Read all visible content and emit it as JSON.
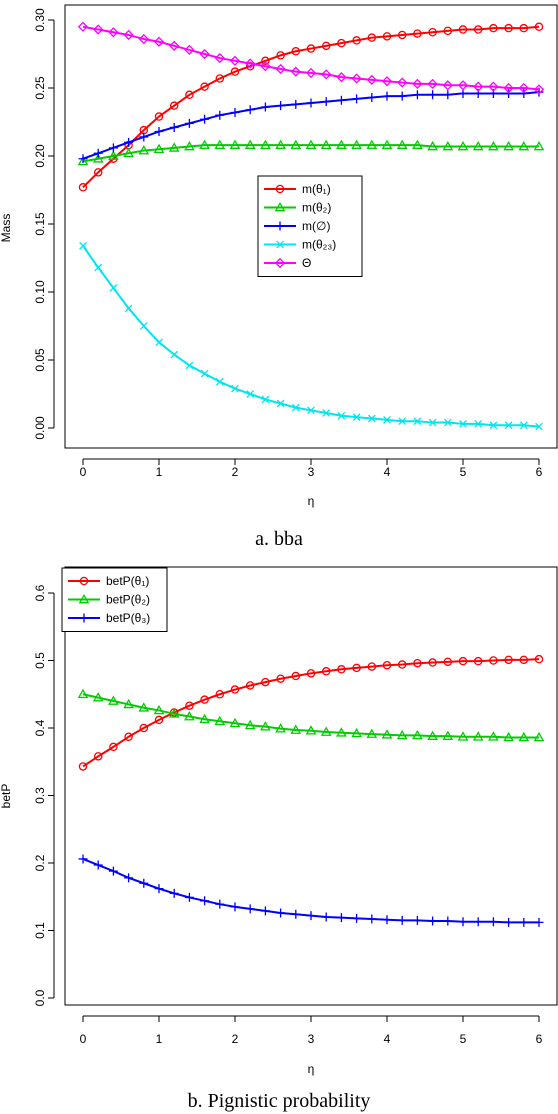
{
  "chart_data": [
    {
      "type": "line",
      "caption": "a. bba",
      "xlabel": "η",
      "ylabel": "Mass",
      "xlim": [
        0,
        6
      ],
      "ylim": [
        0,
        0.3
      ],
      "xticks": [
        "0",
        "1",
        "2",
        "3",
        "4",
        "5",
        "6"
      ],
      "yticks": [
        "0.00",
        "0.05",
        "0.10",
        "0.15",
        "0.20",
        "0.25",
        "0.30"
      ],
      "grid": false,
      "legend_position": "center",
      "x": [
        0,
        0.2,
        0.4,
        0.6,
        0.8,
        1.0,
        1.2,
        1.4,
        1.6,
        1.8,
        2.0,
        2.2,
        2.4,
        2.6,
        2.8,
        3.0,
        3.2,
        3.4,
        3.6,
        3.8,
        4.0,
        4.2,
        4.4,
        4.6,
        4.8,
        5.0,
        5.2,
        5.4,
        5.6,
        5.8,
        6.0
      ],
      "series": [
        {
          "name": "m(θ₁)",
          "color": "#ff0000",
          "marker": "circle",
          "values": [
            0.177,
            0.188,
            0.198,
            0.208,
            0.219,
            0.229,
            0.237,
            0.245,
            0.251,
            0.257,
            0.262,
            0.266,
            0.27,
            0.274,
            0.277,
            0.279,
            0.281,
            0.283,
            0.285,
            0.287,
            0.288,
            0.289,
            0.29,
            0.291,
            0.292,
            0.293,
            0.293,
            0.294,
            0.294,
            0.294,
            0.295
          ]
        },
        {
          "name": "m(θ₂)",
          "color": "#00cc00",
          "marker": "triangle",
          "values": [
            0.196,
            0.198,
            0.2,
            0.202,
            0.204,
            0.205,
            0.206,
            0.207,
            0.208,
            0.208,
            0.208,
            0.208,
            0.208,
            0.208,
            0.208,
            0.208,
            0.208,
            0.208,
            0.208,
            0.208,
            0.208,
            0.208,
            0.208,
            0.207,
            0.207,
            0.207,
            0.207,
            0.207,
            0.207,
            0.207,
            0.207
          ]
        },
        {
          "name": "m(∅)",
          "color": "#0000ff",
          "marker": "plus",
          "values": [
            0.198,
            0.202,
            0.206,
            0.21,
            0.214,
            0.218,
            0.221,
            0.224,
            0.227,
            0.23,
            0.232,
            0.234,
            0.236,
            0.237,
            0.238,
            0.239,
            0.24,
            0.241,
            0.242,
            0.243,
            0.244,
            0.244,
            0.245,
            0.245,
            0.245,
            0.246,
            0.246,
            0.246,
            0.246,
            0.246,
            0.247
          ]
        },
        {
          "name": "m(θ₂₃)",
          "color": "#00e5ee",
          "marker": "cross",
          "values": [
            0.134,
            0.118,
            0.103,
            0.088,
            0.075,
            0.063,
            0.054,
            0.046,
            0.04,
            0.034,
            0.029,
            0.025,
            0.021,
            0.018,
            0.015,
            0.013,
            0.011,
            0.009,
            0.008,
            0.007,
            0.006,
            0.005,
            0.005,
            0.004,
            0.004,
            0.003,
            0.003,
            0.002,
            0.002,
            0.002,
            0.001
          ]
        },
        {
          "name": "Θ",
          "color": "#ff00ff",
          "marker": "diamond",
          "values": [
            0.295,
            0.293,
            0.291,
            0.289,
            0.286,
            0.284,
            0.281,
            0.278,
            0.275,
            0.272,
            0.27,
            0.268,
            0.266,
            0.264,
            0.262,
            0.261,
            0.26,
            0.258,
            0.257,
            0.256,
            0.255,
            0.254,
            0.253,
            0.253,
            0.252,
            0.252,
            0.251,
            0.251,
            0.25,
            0.25,
            0.249
          ]
        }
      ]
    },
    {
      "type": "line",
      "caption": "b. Pignistic probability",
      "xlabel": "η",
      "ylabel": "betP",
      "xlim": [
        0,
        6
      ],
      "ylim": [
        0,
        0.6
      ],
      "xticks": [
        "0",
        "1",
        "2",
        "3",
        "4",
        "5",
        "6"
      ],
      "yticks": [
        "0.0",
        "0.1",
        "0.2",
        "0.3",
        "0.4",
        "0.5",
        "0.6"
      ],
      "grid": false,
      "legend_position": "top-left",
      "x": [
        0,
        0.2,
        0.4,
        0.6,
        0.8,
        1.0,
        1.2,
        1.4,
        1.6,
        1.8,
        2.0,
        2.2,
        2.4,
        2.6,
        2.8,
        3.0,
        3.2,
        3.4,
        3.6,
        3.8,
        4.0,
        4.2,
        4.4,
        4.6,
        4.8,
        5.0,
        5.2,
        5.4,
        5.6,
        5.8,
        6.0
      ],
      "series": [
        {
          "name": "betP(θ₁)",
          "color": "#ff0000",
          "marker": "circle",
          "values": [
            0.343,
            0.358,
            0.372,
            0.387,
            0.4,
            0.412,
            0.423,
            0.433,
            0.442,
            0.45,
            0.457,
            0.463,
            0.468,
            0.473,
            0.477,
            0.481,
            0.484,
            0.487,
            0.489,
            0.491,
            0.493,
            0.494,
            0.496,
            0.497,
            0.498,
            0.499,
            0.499,
            0.5,
            0.501,
            0.501,
            0.502
          ]
        },
        {
          "name": "betP(θ₂)",
          "color": "#00cc00",
          "marker": "triangle",
          "values": [
            0.45,
            0.445,
            0.44,
            0.435,
            0.43,
            0.426,
            0.421,
            0.417,
            0.413,
            0.41,
            0.407,
            0.404,
            0.402,
            0.399,
            0.397,
            0.396,
            0.394,
            0.393,
            0.392,
            0.391,
            0.39,
            0.389,
            0.389,
            0.388,
            0.388,
            0.387,
            0.387,
            0.387,
            0.386,
            0.386,
            0.386
          ]
        },
        {
          "name": "betP(θ₃)",
          "color": "#0000ff",
          "marker": "plus",
          "values": [
            0.206,
            0.197,
            0.188,
            0.178,
            0.17,
            0.162,
            0.155,
            0.149,
            0.144,
            0.139,
            0.135,
            0.132,
            0.129,
            0.126,
            0.124,
            0.122,
            0.12,
            0.119,
            0.118,
            0.117,
            0.116,
            0.115,
            0.115,
            0.114,
            0.114,
            0.113,
            0.113,
            0.113,
            0.112,
            0.112,
            0.112
          ]
        }
      ]
    }
  ]
}
